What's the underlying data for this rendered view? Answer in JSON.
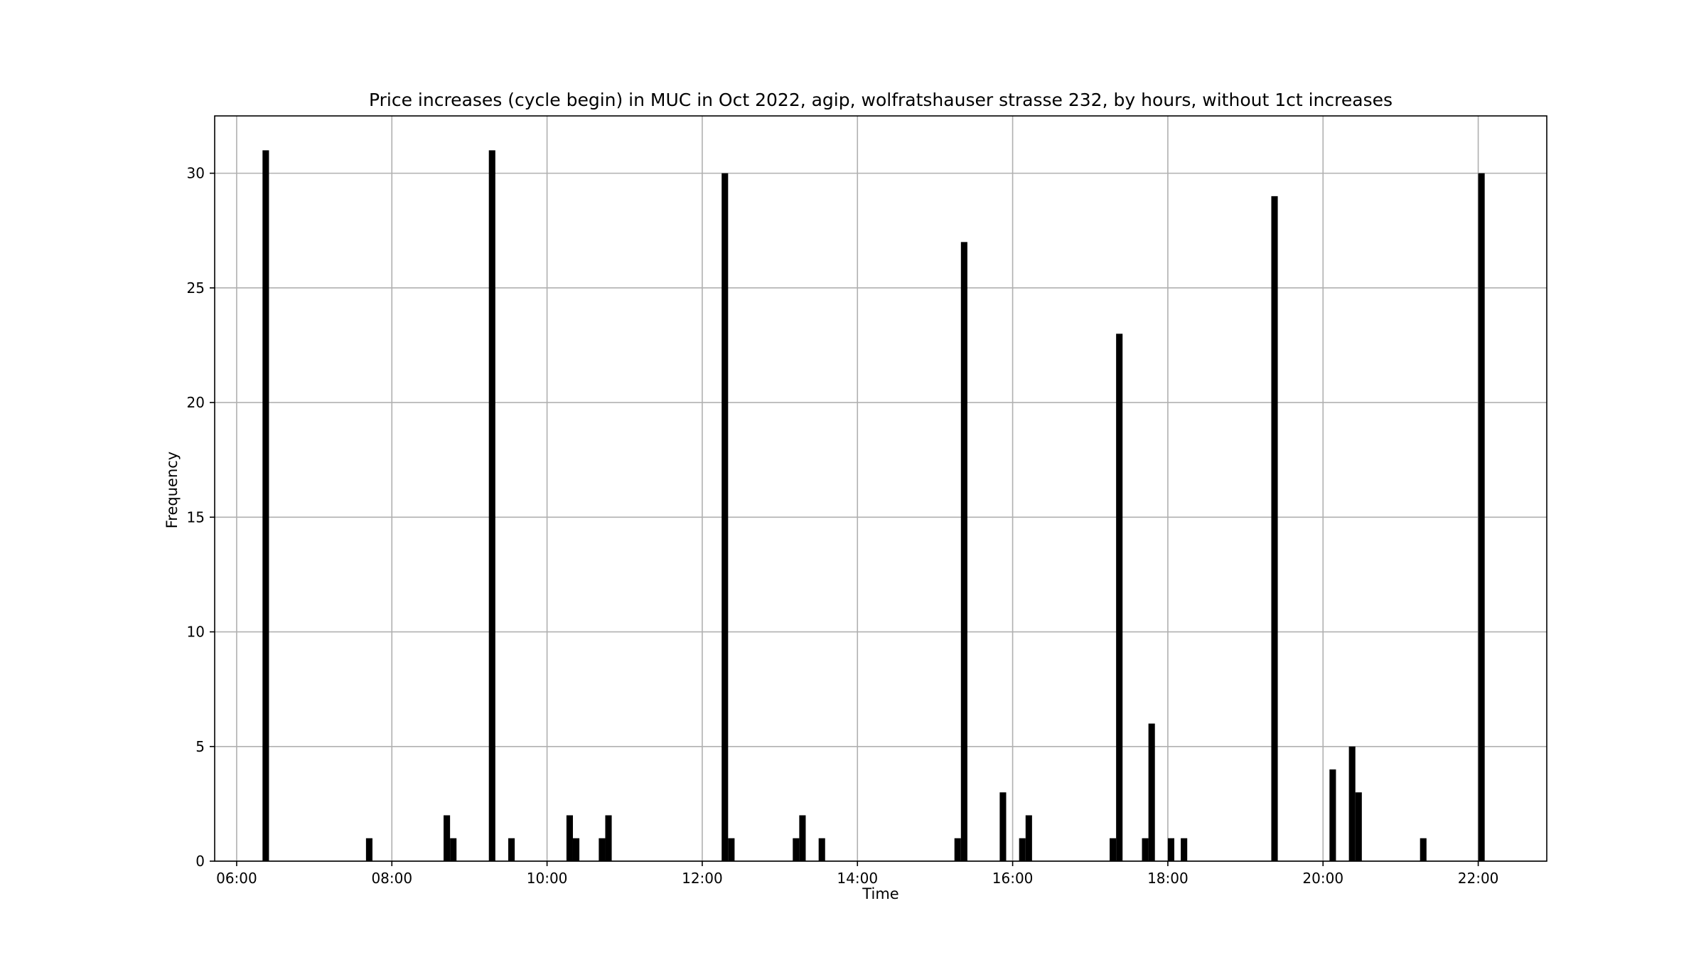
{
  "chart_data": {
    "type": "bar",
    "title": "Price increases (cycle begin) in MUC in Oct 2022, agip, wolfratshauser strasse 232, by hours, without 1ct increases",
    "xlabel": "Time",
    "ylabel": "Frequency",
    "x_unit": "time of day",
    "xlim": [
      "05:43",
      "22:53"
    ],
    "ylim": [
      0,
      32.5
    ],
    "xticks": [
      "06:00",
      "08:00",
      "10:00",
      "12:00",
      "14:00",
      "16:00",
      "18:00",
      "20:00",
      "22:00"
    ],
    "yticks": [
      0,
      5,
      10,
      15,
      20,
      25,
      30
    ],
    "grid": true,
    "bin_width_minutes": 5,
    "bar_color": "#000000",
    "bins": [
      {
        "start": "06:20",
        "count": 31
      },
      {
        "start": "07:40",
        "count": 1
      },
      {
        "start": "08:40",
        "count": 2
      },
      {
        "start": "08:45",
        "count": 1
      },
      {
        "start": "09:15",
        "count": 31
      },
      {
        "start": "09:30",
        "count": 1
      },
      {
        "start": "10:15",
        "count": 2
      },
      {
        "start": "10:20",
        "count": 1
      },
      {
        "start": "10:40",
        "count": 1
      },
      {
        "start": "10:45",
        "count": 2
      },
      {
        "start": "12:15",
        "count": 30
      },
      {
        "start": "12:20",
        "count": 1
      },
      {
        "start": "13:10",
        "count": 1
      },
      {
        "start": "13:15",
        "count": 2
      },
      {
        "start": "13:30",
        "count": 1
      },
      {
        "start": "15:15",
        "count": 1
      },
      {
        "start": "15:20",
        "count": 27
      },
      {
        "start": "15:50",
        "count": 3
      },
      {
        "start": "16:05",
        "count": 1
      },
      {
        "start": "16:10",
        "count": 2
      },
      {
        "start": "17:15",
        "count": 1
      },
      {
        "start": "17:20",
        "count": 23
      },
      {
        "start": "17:40",
        "count": 1
      },
      {
        "start": "17:45",
        "count": 6
      },
      {
        "start": "18:00",
        "count": 1
      },
      {
        "start": "18:10",
        "count": 1
      },
      {
        "start": "19:20",
        "count": 29
      },
      {
        "start": "20:05",
        "count": 4
      },
      {
        "start": "20:20",
        "count": 5
      },
      {
        "start": "20:25",
        "count": 3
      },
      {
        "start": "21:15",
        "count": 1
      },
      {
        "start": "22:00",
        "count": 30
      }
    ]
  }
}
